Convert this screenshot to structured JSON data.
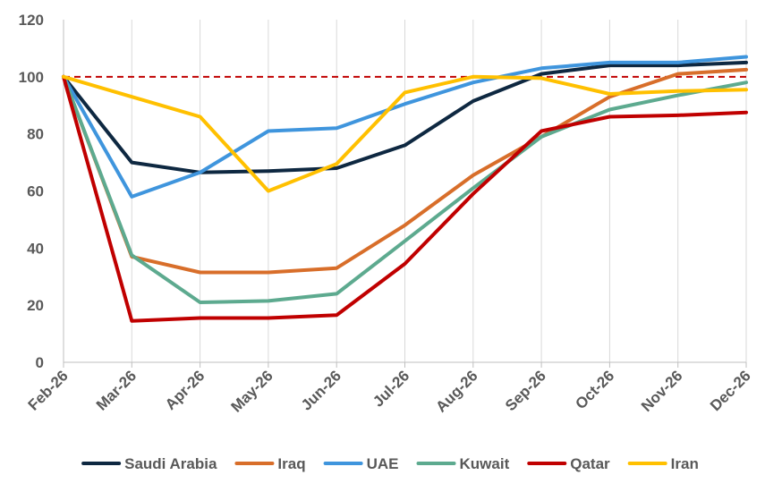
{
  "chart_data": {
    "type": "line",
    "title": "",
    "xlabel": "",
    "ylabel": "",
    "categories": [
      "Feb-26",
      "Mar-26",
      "Apr-26",
      "May-26",
      "Jun-26",
      "Jul-26",
      "Aug-26",
      "Sep-26",
      "Oct-26",
      "Nov-26",
      "Dec-26"
    ],
    "ylim": [
      0,
      120
    ],
    "yticks": [
      0,
      20,
      40,
      60,
      80,
      100,
      120
    ],
    "grid": "vertical",
    "legend_position": "bottom",
    "reference_line": {
      "y": 100,
      "style": "dashed",
      "color": "#C00000"
    },
    "series": [
      {
        "name": "Saudi Arabia",
        "color": "#0E2841",
        "values": [
          100,
          70,
          66.5,
          67,
          68,
          76,
          91.5,
          101,
          104,
          104,
          105
        ]
      },
      {
        "name": "Iraq",
        "color": "#D86E2A",
        "values": [
          100,
          37,
          31.5,
          31.5,
          33,
          48,
          65.5,
          79,
          93,
          101,
          102.5
        ]
      },
      {
        "name": "UAE",
        "color": "#3F95DD",
        "values": [
          100,
          58,
          66.5,
          81,
          82,
          90.5,
          98,
          103,
          105,
          105,
          107
        ]
      },
      {
        "name": "Kuwait",
        "color": "#5DAA8F",
        "values": [
          100,
          37.5,
          21,
          21.5,
          24,
          42.5,
          61,
          79,
          88.5,
          93.5,
          98
        ]
      },
      {
        "name": "Qatar",
        "color": "#C00000",
        "values": [
          100,
          14.5,
          15.5,
          15.5,
          16.5,
          34.5,
          59,
          81,
          86,
          86.5,
          87.5
        ]
      },
      {
        "name": "Iran",
        "color": "#FFC000",
        "values": [
          100,
          93,
          86,
          60,
          69.5,
          94.5,
          100,
          99.5,
          94,
          95,
          95.5
        ]
      }
    ]
  }
}
